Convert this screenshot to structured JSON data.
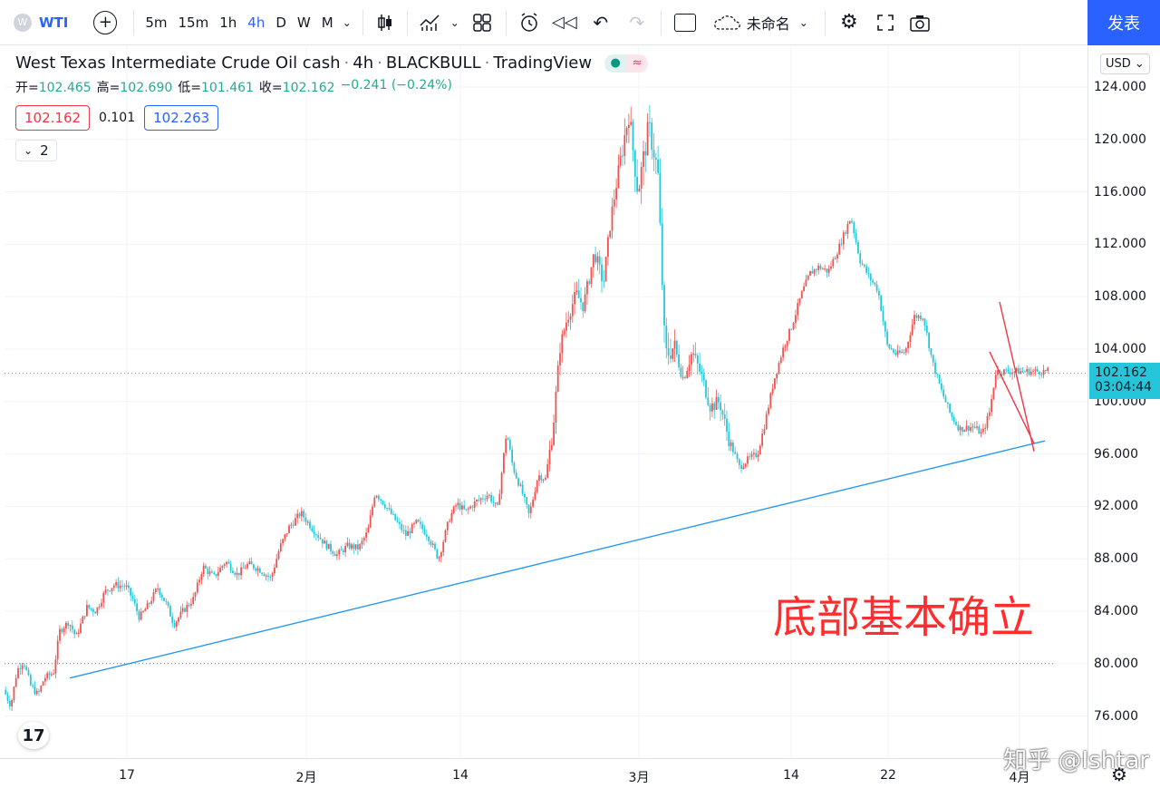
{
  "toolbar": {
    "symbol_logo": "W",
    "symbol": "WTI",
    "add_icon": "plus-circle-icon",
    "timeframes": [
      "5m",
      "15m",
      "1h",
      "4h",
      "D",
      "W",
      "M"
    ],
    "active_timeframe": "4h",
    "layout_name": "未命名",
    "publish_label": "发表"
  },
  "legend": {
    "title": "West Texas Intermediate Crude Oil cash",
    "interval": "4h",
    "broker": "BLACKBULL",
    "platform": "TradingView",
    "ohlc": {
      "open_label": "开=",
      "open": "102.465",
      "high_label": "高=",
      "high": "102.690",
      "low_label": "低=",
      "low": "101.461",
      "close_label": "收=",
      "close": "102.162",
      "change": "−0.241 (−0.24%)"
    },
    "bid": "102.162",
    "spread": "0.101",
    "ask": "102.263",
    "indicator_count": "2"
  },
  "price_axis": {
    "currency": "USD",
    "ticks": [
      "124.000",
      "120.000",
      "116.000",
      "112.000",
      "108.000",
      "104.000",
      "100.000",
      "96.000",
      "92.000",
      "88.000",
      "84.000",
      "80.000",
      "76.000"
    ],
    "last_price": "102.162",
    "countdown": "03:04:44"
  },
  "time_axis": {
    "ticks": [
      "17",
      "2月",
      "14",
      "3月",
      "14",
      "22",
      "4月"
    ]
  },
  "annotation": "底部基本确立",
  "watermark": "知乎 @Ishtar",
  "colors": {
    "up": "#ef5350",
    "down": "#26c6da",
    "trendline": "#2196f3",
    "wedge": "#f23645",
    "accent": "#2962ff"
  },
  "chart_data": {
    "type": "candlestick",
    "title": "West Texas Intermediate Crude Oil cash · 4h · BLACKBULL",
    "ylim": [
      74,
      127
    ],
    "x_ticks": [
      "17",
      "2月",
      "14",
      "3月",
      "14",
      "22",
      "4月"
    ],
    "path": [
      [
        0,
        78
      ],
      [
        8,
        76.8
      ],
      [
        15,
        79.5
      ],
      [
        22,
        80.2
      ],
      [
        30,
        78.3
      ],
      [
        38,
        77.6
      ],
      [
        45,
        78.9
      ],
      [
        55,
        79.3
      ],
      [
        62,
        82.5
      ],
      [
        72,
        83.2
      ],
      [
        80,
        82
      ],
      [
        92,
        84.3
      ],
      [
        102,
        84
      ],
      [
        112,
        85.5
      ],
      [
        122,
        86
      ],
      [
        135,
        85.9
      ],
      [
        142,
        85
      ],
      [
        150,
        83.5
      ],
      [
        160,
        84.5
      ],
      [
        170,
        85.8
      ],
      [
        180,
        84.5
      ],
      [
        188,
        83
      ],
      [
        198,
        84
      ],
      [
        210,
        85
      ],
      [
        220,
        87.4
      ],
      [
        232,
        86.6
      ],
      [
        245,
        87.8
      ],
      [
        258,
        86.8
      ],
      [
        270,
        87.6
      ],
      [
        282,
        87.2
      ],
      [
        295,
        86.5
      ],
      [
        305,
        88.9
      ],
      [
        315,
        90.4
      ],
      [
        328,
        91.5
      ],
      [
        342,
        90.2
      ],
      [
        355,
        89.1
      ],
      [
        368,
        88.3
      ],
      [
        380,
        89
      ],
      [
        392,
        88.8
      ],
      [
        402,
        90.1
      ],
      [
        410,
        93.1
      ],
      [
        420,
        92.2
      ],
      [
        432,
        91
      ],
      [
        444,
        89.8
      ],
      [
        456,
        90.8
      ],
      [
        468,
        89.8
      ],
      [
        480,
        88
      ],
      [
        492,
        91.1
      ],
      [
        500,
        92.2
      ],
      [
        510,
        91.6
      ],
      [
        522,
        92.4
      ],
      [
        535,
        92.9
      ],
      [
        545,
        91.8
      ],
      [
        555,
        97.7
      ],
      [
        562,
        95
      ],
      [
        572,
        93.1
      ],
      [
        580,
        91.3
      ],
      [
        590,
        94.4
      ],
      [
        598,
        94.1
      ],
      [
        606,
        97.7
      ],
      [
        614,
        104.1
      ],
      [
        622,
        106.4
      ],
      [
        632,
        108.2
      ],
      [
        640,
        107.3
      ],
      [
        652,
        111.4
      ],
      [
        662,
        109
      ],
      [
        670,
        113.9
      ],
      [
        680,
        118.2
      ],
      [
        690,
        122
      ],
      [
        700,
        116
      ],
      [
        712,
        121
      ],
      [
        722,
        117.5
      ],
      [
        730,
        103.5
      ],
      [
        740,
        104.2
      ],
      [
        750,
        101.8
      ],
      [
        760,
        103.8
      ],
      [
        770,
        102
      ],
      [
        780,
        99.6
      ],
      [
        790,
        100
      ],
      [
        800,
        97.2
      ],
      [
        812,
        95
      ],
      [
        822,
        95.6
      ],
      [
        832,
        96
      ],
      [
        840,
        98.3
      ],
      [
        850,
        101.6
      ],
      [
        860,
        104
      ],
      [
        870,
        105.8
      ],
      [
        880,
        108.1
      ],
      [
        890,
        109.8
      ],
      [
        900,
        110.3
      ],
      [
        910,
        109.9
      ],
      [
        922,
        111.8
      ],
      [
        935,
        114.1
      ],
      [
        945,
        110.8
      ],
      [
        955,
        109.5
      ],
      [
        965,
        108.5
      ],
      [
        975,
        104.3
      ],
      [
        985,
        103.6
      ],
      [
        995,
        103.8
      ],
      [
        1005,
        106.5
      ],
      [
        1015,
        106.5
      ],
      [
        1025,
        103
      ],
      [
        1035,
        100.8
      ],
      [
        1045,
        99
      ],
      [
        1055,
        97.9
      ],
      [
        1070,
        98.1
      ],
      [
        1080,
        97.5
      ],
      [
        1088,
        99.2
      ],
      [
        1095,
        102.3
      ]
    ],
    "last_close": 102.162,
    "last_label_price": 102.162,
    "ref_line": 80,
    "trendline": {
      "start": [
        0,
        78.9
      ],
      "end": [
        1148,
        97
      ]
    },
    "wedge_lines": [
      {
        "start": [
          1098,
          107.6
        ],
        "end": [
          1136,
          96.2
        ]
      },
      {
        "start": [
          1087,
          103.8
        ],
        "end": [
          1136,
          96.8
        ]
      }
    ]
  }
}
